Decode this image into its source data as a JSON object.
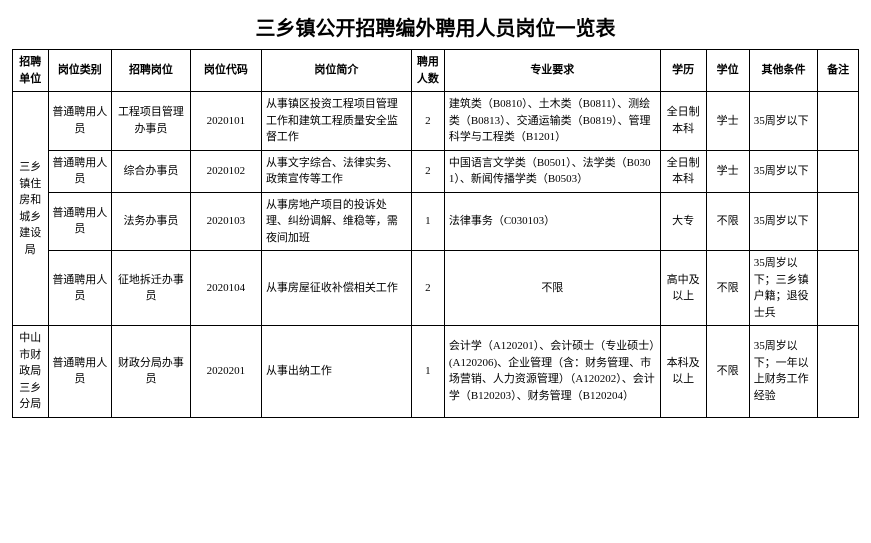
{
  "title": "三乡镇公开招聘编外聘用人员岗位一览表",
  "columns": [
    "招聘单位",
    "岗位类别",
    "招聘岗位",
    "岗位代码",
    "岗位简介",
    "聘用人数",
    "专业要求",
    "学历",
    "学位",
    "其他条件",
    "备注"
  ],
  "units": [
    {
      "name": "三乡镇住房和城乡建设局",
      "rowspan": 4,
      "rows": [
        {
          "cat": "普通聘用人员",
          "post": "工程项目管理办事员",
          "code": "2020101",
          "desc": "从事镇区投资工程项目管理工作和建筑工程质量安全监督工作",
          "num": "2",
          "major": "建筑类（B0810）、土木类（B0811）、测绘类（B0813）、交通运输类（B0819）、管理科学与工程类（B1201）",
          "edu": "全日制本科",
          "degree": "学士",
          "other": "35周岁以下",
          "remark": ""
        },
        {
          "cat": "普通聘用人员",
          "post": "综合办事员",
          "code": "2020102",
          "desc": "从事文字综合、法律实务、政策宣传等工作",
          "num": "2",
          "major": "中国语言文学类（B0501）、法学类（B0301）、新闻传播学类（B0503）",
          "edu": "全日制本科",
          "degree": "学士",
          "other": "35周岁以下",
          "remark": ""
        },
        {
          "cat": "普通聘用人员",
          "post": "法务办事员",
          "code": "2020103",
          "desc": "从事房地产项目的投诉处理、纠纷调解、维稳等，需夜间加班",
          "num": "1",
          "major": "法律事务（C030103）",
          "edu": "大专",
          "degree": "不限",
          "other": "35周岁以下",
          "remark": ""
        },
        {
          "cat": "普通聘用人员",
          "post": "征地拆迁办事员",
          "code": "2020104",
          "desc": "从事房屋征收补偿相关工作",
          "num": "2",
          "major": "不限",
          "edu": "高中及以上",
          "degree": "不限",
          "other": "35周岁以下；三乡镇户籍；退役士兵",
          "remark": ""
        }
      ]
    },
    {
      "name": "中山市财政局三乡分局",
      "rowspan": 1,
      "rows": [
        {
          "cat": "普通聘用人员",
          "post": "财政分局办事员",
          "code": "2020201",
          "desc": "从事出纳工作",
          "num": "1",
          "major": "会计学（A120201）、会计硕士（专业硕士）(A120206)、企业管理（含：财务管理、市场营销、人力资源管理）（A120202）、会计学（B120203）、财务管理（B120204）",
          "edu": "本科及以上",
          "degree": "不限",
          "other": "35周岁以下；一年以上财务工作经验",
          "remark": ""
        }
      ]
    }
  ],
  "style": {
    "title_fontsize": 20,
    "cell_fontsize": 11,
    "border_color": "#000000",
    "background": "#ffffff",
    "line_height": 1.5
  }
}
